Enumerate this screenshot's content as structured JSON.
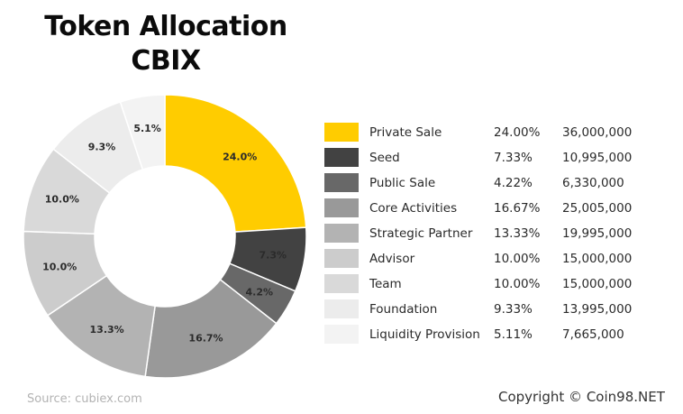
{
  "title_line1": "Token Allocation",
  "title_line2": "CBIX",
  "source": "Source: cubiex.com",
  "copyright": "Copyright © Coin98.NET",
  "chart_data": {
    "type": "pie",
    "variant": "donut",
    "legend_position": "right",
    "columns": [
      "name",
      "percent",
      "amount"
    ],
    "slices": [
      {
        "name": "Private Sale",
        "value": 24.0,
        "percent_label": "24.00%",
        "amount": "36,000,000",
        "slice_label": "24.0%",
        "color": "#ffcc00"
      },
      {
        "name": "Seed",
        "value": 7.33,
        "percent_label": "7.33%",
        "amount": "10,995,000",
        "slice_label": "7.3%",
        "color": "#424242"
      },
      {
        "name": "Public Sale",
        "value": 4.22,
        "percent_label": "4.22%",
        "amount": "6,330,000",
        "slice_label": "4.2%",
        "color": "#686868"
      },
      {
        "name": "Core Activities",
        "value": 16.67,
        "percent_label": "16.67%",
        "amount": "25,005,000",
        "slice_label": "16.7%",
        "color": "#999999"
      },
      {
        "name": "Strategic Partner",
        "value": 13.33,
        "percent_label": "13.33%",
        "amount": "19,995,000",
        "slice_label": "13.3%",
        "color": "#b3b3b3"
      },
      {
        "name": "Advisor",
        "value": 10.0,
        "percent_label": "10.00%",
        "amount": "15,000,000",
        "slice_label": "10.0%",
        "color": "#cccccc"
      },
      {
        "name": "Team",
        "value": 10.0,
        "percent_label": "10.00%",
        "amount": "15,000,000",
        "slice_label": "10.0%",
        "color": "#d9d9d9"
      },
      {
        "name": "Foundation",
        "value": 9.33,
        "percent_label": "9.33%",
        "amount": "13,995,000",
        "slice_label": "9.3%",
        "color": "#ececec"
      },
      {
        "name": "Liquidity Provision",
        "value": 5.11,
        "percent_label": "5.11%",
        "amount": "7,665,000",
        "slice_label": "5.1%",
        "color": "#f3f3f3"
      }
    ]
  }
}
